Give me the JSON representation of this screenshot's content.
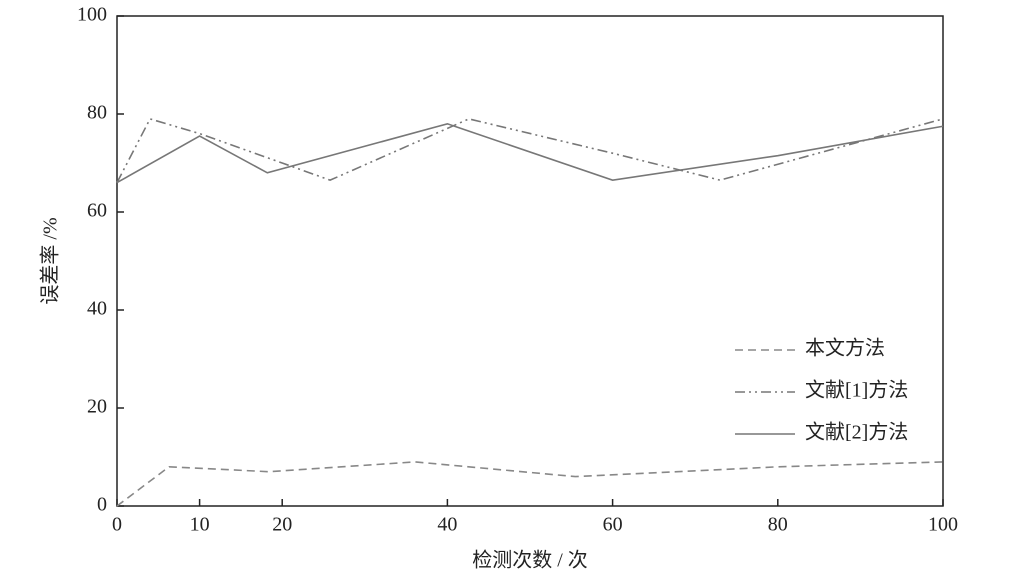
{
  "chart_data": {
    "type": "line",
    "xlabel": "检测次数 / 次",
    "ylabel": "误差率 /%",
    "xlim": [
      0,
      100
    ],
    "xticks": [
      0,
      10,
      20,
      40,
      60,
      80,
      100
    ],
    "ylim": [
      0,
      100
    ],
    "yticks": [
      0,
      20,
      40,
      60,
      80,
      100
    ],
    "legend": "right",
    "series": [
      {
        "name": "本文方法",
        "color": "#888888",
        "dash": "dashed",
        "x": [
          0,
          6.3,
          18.4,
          36.1,
          55.5,
          80,
          100
        ],
        "values": [
          0,
          8,
          7,
          9,
          6,
          8,
          9
        ]
      },
      {
        "name": "文献[1]方法",
        "color": "#777777",
        "dash": "dashdot",
        "x": [
          0,
          4,
          10,
          20,
          25.8,
          42.6,
          60,
          73,
          100
        ],
        "values": [
          66,
          79,
          76,
          70,
          66.5,
          79,
          72,
          66.5,
          79
        ]
      },
      {
        "name": "文献[2]方法",
        "color": "#777777",
        "dash": "solid",
        "x": [
          0,
          10,
          18.2,
          40,
          60,
          80,
          100
        ],
        "values": [
          66,
          75.5,
          68,
          78,
          66.5,
          71.5,
          77.5
        ]
      }
    ]
  }
}
